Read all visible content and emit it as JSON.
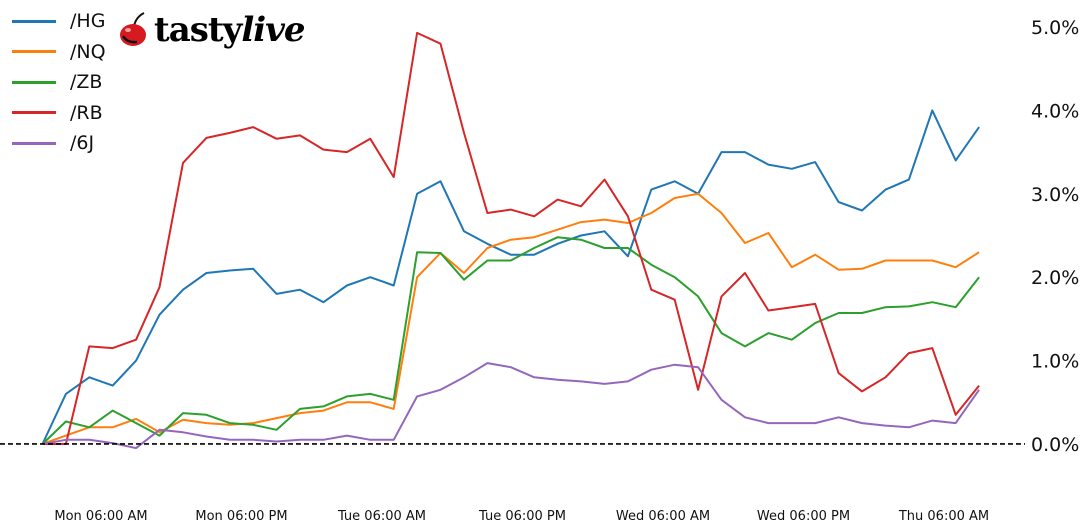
{
  "logo": {
    "brand": "tastylive",
    "part1": "tasty",
    "part2": "live"
  },
  "chart_data": {
    "type": "line",
    "title": "",
    "xlabel": "",
    "ylabel": "",
    "y_axis_position": "right",
    "y_unit": "%",
    "ylim": [
      -0.6,
      5.3
    ],
    "grid": false,
    "legend_position": "top-left",
    "reference_line": {
      "y": 0.0,
      "style": "dashed",
      "color": "#000000"
    },
    "x_ticks": [
      "Mon 06:00 AM",
      "Mon 06:00 PM",
      "Tue 06:00 AM",
      "Tue 06:00 PM",
      "Wed 06:00 AM",
      "Wed 06:00 PM",
      "Thu 06:00 AM"
    ],
    "x_tick_values": [
      "Mon 06:00",
      "Mon 18:00",
      "Tue 06:00",
      "Tue 18:00",
      "Wed 06:00",
      "Wed 18:00",
      "Thu 06:00"
    ],
    "y_ticks": [
      0,
      1,
      2,
      3,
      4,
      5
    ],
    "y_tick_labels": [
      "0.0%",
      "1.0%",
      "2.0%",
      "3.0%",
      "4.0%",
      "5.0%"
    ],
    "x": [
      "Mon 01:00",
      "Mon 03:00",
      "Mon 05:00",
      "Mon 07:00",
      "Mon 09:00",
      "Mon 11:00",
      "Mon 13:00",
      "Mon 15:00",
      "Mon 17:00",
      "Mon 19:00",
      "Mon 21:00",
      "Mon 23:00",
      "Tue 01:00",
      "Tue 03:00",
      "Tue 05:00",
      "Tue 07:00",
      "Tue 09:00",
      "Tue 11:00",
      "Tue 13:00",
      "Tue 15:00",
      "Tue 17:00",
      "Tue 19:00",
      "Tue 21:00",
      "Tue 23:00",
      "Wed 01:00",
      "Wed 03:00",
      "Wed 05:00",
      "Wed 07:00",
      "Wed 09:00",
      "Wed 11:00",
      "Wed 13:00",
      "Wed 15:00",
      "Wed 17:00",
      "Wed 19:00",
      "Wed 21:00",
      "Wed 23:00",
      "Thu 01:00",
      "Thu 03:00",
      "Thu 05:00",
      "Thu 07:00",
      "Thu 09:00"
    ],
    "series": [
      {
        "name": "/HG",
        "color": "#1f77b4",
        "values": [
          0.0,
          0.6,
          0.8,
          0.7,
          1.0,
          1.55,
          1.85,
          2.05,
          2.08,
          2.1,
          1.8,
          1.85,
          1.7,
          1.9,
          2.0,
          1.9,
          3.0,
          3.15,
          2.55,
          2.4,
          2.27,
          2.27,
          2.4,
          2.5,
          2.55,
          2.25,
          3.05,
          3.15,
          3.0,
          3.5,
          3.5,
          3.35,
          3.3,
          3.38,
          2.9,
          2.8,
          3.05,
          3.17,
          4.0,
          3.4,
          3.8
        ]
      },
      {
        "name": "/NQ",
        "color": "#ff7f0e",
        "values": [
          0.0,
          0.1,
          0.2,
          0.2,
          0.3,
          0.14,
          0.29,
          0.25,
          0.23,
          0.25,
          0.31,
          0.37,
          0.4,
          0.5,
          0.5,
          0.42,
          2.0,
          2.29,
          2.05,
          2.35,
          2.45,
          2.48,
          2.57,
          2.66,
          2.69,
          2.65,
          2.77,
          2.95,
          3.0,
          2.77,
          2.41,
          2.53,
          2.12,
          2.27,
          2.09,
          2.1,
          2.2,
          2.2,
          2.2,
          2.12,
          2.3
        ]
      },
      {
        "name": "/ZB",
        "color": "#2ca02c",
        "values": [
          0.0,
          0.27,
          0.2,
          0.4,
          0.25,
          0.1,
          0.37,
          0.35,
          0.25,
          0.23,
          0.17,
          0.42,
          0.45,
          0.57,
          0.6,
          0.53,
          2.3,
          2.29,
          1.97,
          2.2,
          2.2,
          2.35,
          2.48,
          2.45,
          2.35,
          2.35,
          2.15,
          2.0,
          1.77,
          1.33,
          1.17,
          1.33,
          1.25,
          1.45,
          1.57,
          1.57,
          1.64,
          1.65,
          1.7,
          1.64,
          2.0
        ]
      },
      {
        "name": "/RB",
        "color": "#d62728",
        "values": [
          0.0,
          0.0,
          1.17,
          1.15,
          1.25,
          1.88,
          3.37,
          3.67,
          3.73,
          3.8,
          3.66,
          3.7,
          3.53,
          3.5,
          3.66,
          3.2,
          4.93,
          4.8,
          3.73,
          2.77,
          2.81,
          2.73,
          2.93,
          2.85,
          3.17,
          2.73,
          1.85,
          1.73,
          0.65,
          1.77,
          2.05,
          1.6,
          1.64,
          1.68,
          0.85,
          0.63,
          0.8,
          1.09,
          1.15,
          0.35,
          0.7
        ]
      },
      {
        "name": "/6J",
        "color": "#9467bd",
        "values": [
          0.0,
          0.05,
          0.05,
          0.01,
          -0.05,
          0.17,
          0.14,
          0.09,
          0.05,
          0.05,
          0.03,
          0.05,
          0.05,
          0.1,
          0.05,
          0.05,
          0.57,
          0.65,
          0.8,
          0.97,
          0.92,
          0.8,
          0.77,
          0.75,
          0.72,
          0.75,
          0.89,
          0.95,
          0.92,
          0.53,
          0.32,
          0.25,
          0.25,
          0.25,
          0.32,
          0.25,
          0.22,
          0.2,
          0.28,
          0.25,
          0.65
        ]
      }
    ]
  }
}
